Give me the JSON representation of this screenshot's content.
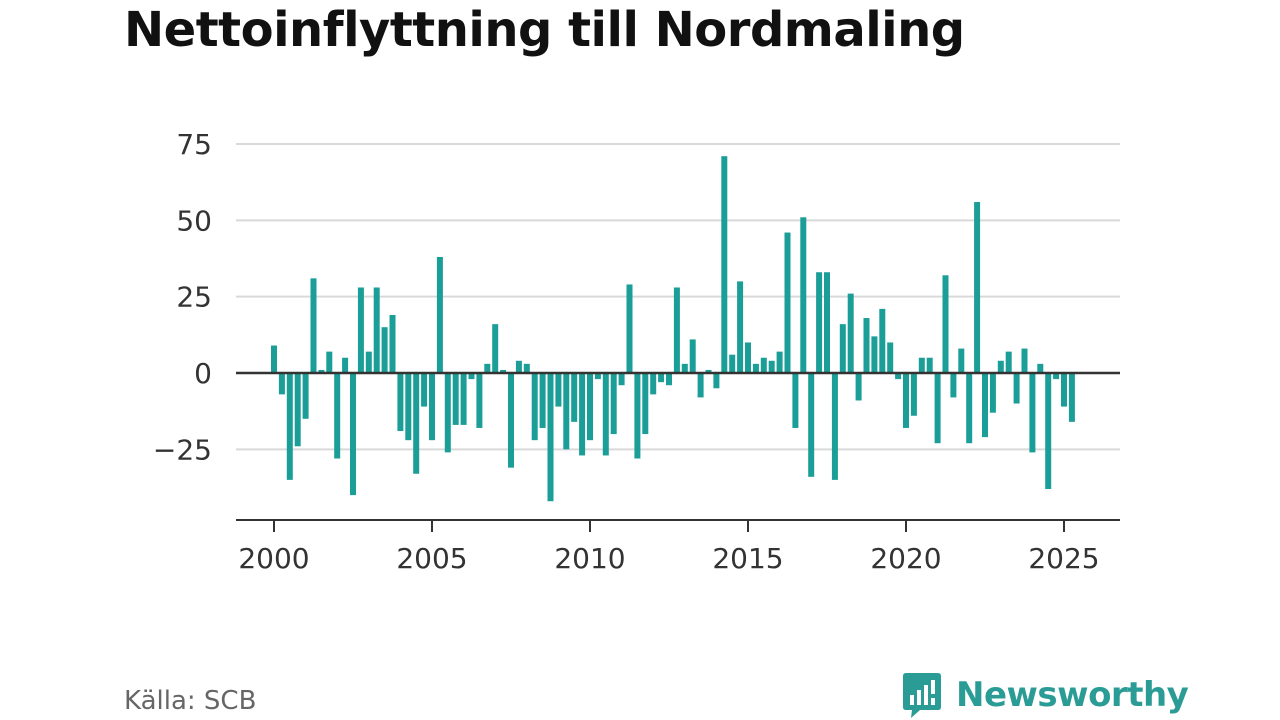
{
  "title": "Nettoinflyttning till Nordmaling",
  "source": "Källa: SCB",
  "brand": {
    "name": "Newsworthy",
    "icon": "newsworthy-bar-chart-icon",
    "color": "#2b9c95"
  },
  "colors": {
    "bar": "#1a9e97",
    "grid": "#d9d9d9",
    "axis": "#333333"
  },
  "chart_data": {
    "type": "bar",
    "title": "Nettoinflyttning till Nordmaling",
    "xlabel": "",
    "ylabel": "",
    "ylim": [
      -48,
      80
    ],
    "xlim": [
      1999.6,
      2026.5
    ],
    "grid": true,
    "yticks": [
      75,
      50,
      25,
      0,
      -25
    ],
    "ytick_labels": [
      "75",
      "50",
      "25",
      "0",
      "−25"
    ],
    "xticks": [
      2000,
      2005,
      2010,
      2015,
      2020,
      2025
    ],
    "xtick_labels": [
      "2000",
      "2005",
      "2010",
      "2015",
      "2020",
      "2025"
    ],
    "x": [
      2000.0,
      2000.25,
      2000.5,
      2000.75,
      2001.0,
      2001.25,
      2001.5,
      2001.75,
      2002.0,
      2002.25,
      2002.5,
      2002.75,
      2003.0,
      2003.25,
      2003.5,
      2003.75,
      2004.0,
      2004.25,
      2004.5,
      2004.75,
      2005.0,
      2005.25,
      2005.5,
      2005.75,
      2006.0,
      2006.25,
      2006.5,
      2006.75,
      2007.0,
      2007.25,
      2007.5,
      2007.75,
      2008.0,
      2008.25,
      2008.5,
      2008.75,
      2009.0,
      2009.25,
      2009.5,
      2009.75,
      2010.0,
      2010.25,
      2010.5,
      2010.75,
      2011.0,
      2011.25,
      2011.5,
      2011.75,
      2012.0,
      2012.25,
      2012.5,
      2012.75,
      2013.0,
      2013.25,
      2013.5,
      2013.75,
      2014.0,
      2014.25,
      2014.5,
      2014.75,
      2015.0,
      2015.25,
      2015.5,
      2015.75,
      2016.0,
      2016.25,
      2016.5,
      2016.75,
      2017.0,
      2017.25,
      2017.5,
      2017.75,
      2018.0,
      2018.25,
      2018.5,
      2018.75,
      2019.0,
      2019.25,
      2019.5,
      2019.75,
      2020.0,
      2020.25,
      2020.5,
      2020.75,
      2021.0,
      2021.25,
      2021.5,
      2021.75,
      2022.0,
      2022.25,
      2022.5,
      2022.75,
      2023.0,
      2023.25,
      2023.5,
      2023.75,
      2024.0,
      2024.25,
      2024.5,
      2024.75,
      2025.0,
      2025.25
    ],
    "values": [
      9,
      -7,
      -35,
      -24,
      -15,
      31,
      1,
      7,
      -28,
      5,
      -40,
      28,
      7,
      28,
      15,
      19,
      -19,
      -22,
      -33,
      -11,
      -22,
      38,
      -26,
      -17,
      -17,
      -2,
      -18,
      3,
      16,
      1,
      -31,
      4,
      3,
      -22,
      -18,
      -42,
      -11,
      -25,
      -16,
      -27,
      -22,
      -2,
      -27,
      -20,
      -4,
      29,
      -28,
      -20,
      -7,
      -3,
      -4,
      28,
      3,
      11,
      -8,
      1,
      -5,
      71,
      6,
      30,
      10,
      3,
      5,
      4,
      7,
      46,
      -18,
      51,
      -34,
      33,
      33,
      -35,
      16,
      26,
      -9,
      18,
      12,
      21,
      10,
      -2,
      -18,
      -14,
      5,
      5,
      -23,
      32,
      -8,
      8,
      -23,
      56,
      -21,
      -13,
      4,
      7,
      -10,
      8,
      -26,
      3,
      -38,
      -2,
      -11,
      -16
    ]
  }
}
